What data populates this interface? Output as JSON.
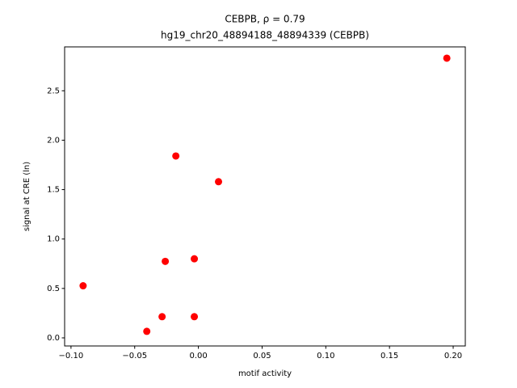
{
  "chart_data": {
    "type": "scatter",
    "title": "CEBPB, ρ = 0.79",
    "subtitle": "hg19_chr20_48894188_48894339 (CEBPB)",
    "x_label": "motif activity",
    "y_label": "signal at CRE (ln)",
    "color": "#ff0000",
    "x": [
      -0.0905,
      -0.0405,
      -0.0285,
      -0.026,
      -0.0177,
      -0.0032,
      -0.0032,
      0.0158,
      0.195
    ],
    "values": [
      0.527,
      0.066,
      0.214,
      0.774,
      1.84,
      0.8,
      0.214,
      1.58,
      2.83
    ],
    "xlim": [
      -0.105,
      0.2095
    ],
    "ylim": [
      -0.082,
      2.944
    ],
    "xticks": [
      {
        "value": -0.1,
        "label": "−0.10"
      },
      {
        "value": -0.05,
        "label": "−0.05"
      },
      {
        "value": 0,
        "label": "0.00"
      },
      {
        "value": 0.05,
        "label": "0.05"
      },
      {
        "value": 0.1,
        "label": "0.10"
      },
      {
        "value": 0.15,
        "label": "0.15"
      },
      {
        "value": 0.2,
        "label": "0.20"
      }
    ],
    "yticks": [
      {
        "value": 0,
        "label": "0.0"
      },
      0.5,
      {
        "value": 1,
        "label": "1.0"
      },
      1.5,
      {
        "value": 2,
        "label": "2.0"
      },
      2.5
    ],
    "grid": false
  }
}
